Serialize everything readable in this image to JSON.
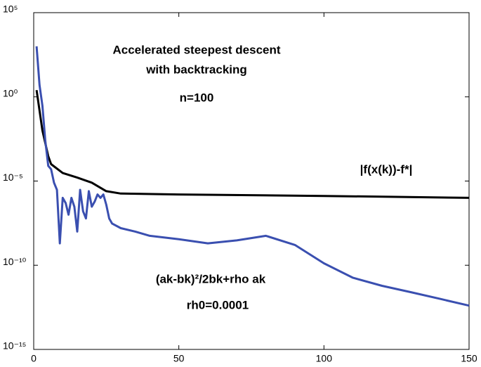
{
  "chart_data": {
    "type": "line",
    "log_y": true,
    "grid": false,
    "xlim": [
      0,
      150
    ],
    "xticks": [
      0,
      50,
      100,
      150
    ],
    "ylim": [
      1e-15,
      100000
    ],
    "yticks": [
      {
        "value": 1e-15,
        "label": "10⁻¹⁵"
      },
      {
        "value": 1e-10,
        "label": "10⁻¹⁰"
      },
      {
        "value": 1e-05,
        "label": "10⁻⁵"
      },
      {
        "value": 1,
        "label": "10⁰"
      },
      {
        "value": 100000,
        "label": "10⁵"
      }
    ],
    "title_lines": [
      "Accelerated steepest descent",
      "with backtracking",
      "n=100"
    ],
    "annotations": [
      "rh0=0.0001"
    ],
    "series": [
      {
        "name": "|f(x(k))-f*|",
        "color": "#000000",
        "x": [
          1,
          3,
          5,
          6,
          10,
          15,
          20,
          25,
          30,
          50,
          100,
          150
        ],
        "values": [
          2.5,
          0.01,
          0.0003,
          0.0001,
          3e-05,
          1.6e-05,
          8e-06,
          2.5e-06,
          1.8e-06,
          1.6e-06,
          1.3e-06,
          1e-06
        ]
      },
      {
        "name": "(ak-bk)²/2bk+rho ak",
        "color": "#3a4fb0",
        "x": [
          1,
          2,
          3,
          4,
          5,
          6,
          7,
          8,
          9,
          10,
          11,
          12,
          13,
          14,
          15,
          16,
          17,
          18,
          19,
          20,
          21,
          22,
          23,
          24,
          25,
          26,
          27,
          30,
          35,
          40,
          50,
          60,
          70,
          80,
          90,
          100,
          110,
          120,
          130,
          140,
          150
        ],
        "values": [
          1000,
          5,
          0.3,
          0.0025,
          8e-05,
          5e-05,
          8e-06,
          3e-06,
          2e-09,
          1e-06,
          5e-07,
          1e-07,
          1e-06,
          3e-07,
          1e-08,
          3e-06,
          1.6e-07,
          6e-08,
          2.5e-06,
          3e-07,
          6e-07,
          1.6e-06,
          1e-06,
          1.6e-06,
          4e-07,
          6e-08,
          3e-08,
          1.6e-08,
          1e-08,
          5.6e-09,
          3.5e-09,
          2e-09,
          3e-09,
          5.6e-09,
          1.6e-09,
          1.3e-10,
          1.8e-11,
          6e-12,
          2.5e-12,
          1e-12,
          4e-13
        ]
      }
    ]
  }
}
